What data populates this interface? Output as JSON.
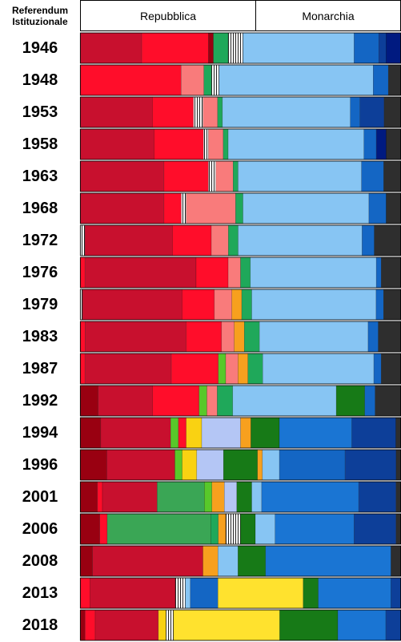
{
  "header": {
    "corner_line1": "Referendum",
    "corner_line2": "Istituzionale",
    "left_label": "Repubblica",
    "right_label": "Monarchia"
  },
  "chart_data": {
    "type": "bar",
    "orientation": "horizontal-stacked",
    "header_split_percent": 54.5,
    "colors": {
      "darkred": "#990011",
      "crimson": "#c8102e",
      "red": "#ff0d2a",
      "salmon": "#f97b7b",
      "green": "#1fa85a",
      "darkgreen": "#177a17",
      "medgreen": "#3aa655",
      "lime": "#58c82a",
      "lightblue": "#87c5f3",
      "periwinkle": "#b4c6f5",
      "blue": "#1466c4",
      "medblue": "#1a75d3",
      "navy": "#0d3f99",
      "darknavy": "#001a80",
      "dark": "#2e2e2e",
      "yellow": "#ffe22e",
      "gold": "#f9d212",
      "orange": "#f7a01e",
      "hatch": "stripes"
    },
    "rows": [
      {
        "year": "1946",
        "segments": [
          [
            "crimson",
            25
          ],
          [
            "red",
            27
          ],
          [
            "darkred",
            2
          ],
          [
            "green",
            6
          ],
          [
            "hatch",
            6
          ],
          [
            "lightblue",
            45
          ],
          [
            "blue",
            10
          ],
          [
            "navy",
            3
          ],
          [
            "darknavy",
            6
          ]
        ]
      },
      {
        "year": "1948",
        "segments": [
          [
            "red",
            40
          ],
          [
            "salmon",
            9
          ],
          [
            "green",
            3
          ],
          [
            "hatch",
            3
          ],
          [
            "lightblue",
            61
          ],
          [
            "blue",
            6
          ],
          [
            "dark",
            5
          ]
        ]
      },
      {
        "year": "1953",
        "segments": [
          [
            "crimson",
            30
          ],
          [
            "red",
            17
          ],
          [
            "hatch",
            4
          ],
          [
            "salmon",
            6
          ],
          [
            "green",
            2
          ],
          [
            "lightblue",
            53
          ],
          [
            "blue",
            4
          ],
          [
            "navy",
            10
          ],
          [
            "dark",
            7
          ]
        ]
      },
      {
        "year": "1958",
        "segments": [
          [
            "crimson",
            30
          ],
          [
            "red",
            20
          ],
          [
            "hatch",
            2
          ],
          [
            "salmon",
            6
          ],
          [
            "green",
            2
          ],
          [
            "lightblue",
            55
          ],
          [
            "blue",
            5
          ],
          [
            "darknavy",
            4
          ],
          [
            "dark",
            6
          ]
        ]
      },
      {
        "year": "1963",
        "segments": [
          [
            "crimson",
            34
          ],
          [
            "red",
            18
          ],
          [
            "hatch",
            3
          ],
          [
            "salmon",
            7
          ],
          [
            "green",
            2
          ],
          [
            "lightblue",
            50
          ],
          [
            "blue",
            9
          ],
          [
            "dark",
            7
          ]
        ]
      },
      {
        "year": "1968",
        "segments": [
          [
            "crimson",
            34
          ],
          [
            "red",
            7
          ],
          [
            "hatch",
            2
          ],
          [
            "salmon",
            20
          ],
          [
            "green",
            3
          ],
          [
            "lightblue",
            51
          ],
          [
            "blue",
            7
          ],
          [
            "dark",
            6
          ]
        ]
      },
      {
        "year": "1972",
        "segments": [
          [
            "hatch",
            2
          ],
          [
            "crimson",
            36
          ],
          [
            "red",
            16
          ],
          [
            "salmon",
            7
          ],
          [
            "green",
            4
          ],
          [
            "lightblue",
            51
          ],
          [
            "blue",
            5
          ],
          [
            "dark",
            11
          ]
        ]
      },
      {
        "year": "1976",
        "segments": [
          [
            "red",
            2
          ],
          [
            "crimson",
            45
          ],
          [
            "red",
            13
          ],
          [
            "salmon",
            5
          ],
          [
            "green",
            4
          ],
          [
            "lightblue",
            51
          ],
          [
            "blue",
            2
          ],
          [
            "dark",
            8
          ]
        ]
      },
      {
        "year": "1979",
        "segments": [
          [
            "hatch",
            1
          ],
          [
            "crimson",
            40
          ],
          [
            "red",
            13
          ],
          [
            "salmon",
            7
          ],
          [
            "orange",
            4
          ],
          [
            "green",
            4
          ],
          [
            "lightblue",
            50
          ],
          [
            "blue",
            3
          ],
          [
            "dark",
            7
          ]
        ]
      },
      {
        "year": "1983",
        "segments": [
          [
            "red",
            2
          ],
          [
            "crimson",
            40
          ],
          [
            "red",
            14
          ],
          [
            "salmon",
            5
          ],
          [
            "orange",
            4
          ],
          [
            "green",
            6
          ],
          [
            "lightblue",
            43
          ],
          [
            "blue",
            4
          ],
          [
            "dark",
            9
          ]
        ]
      },
      {
        "year": "1987",
        "segments": [
          [
            "red",
            2
          ],
          [
            "crimson",
            35
          ],
          [
            "red",
            19
          ],
          [
            "lime",
            3
          ],
          [
            "salmon",
            5
          ],
          [
            "orange",
            4
          ],
          [
            "green",
            6
          ],
          [
            "lightblue",
            45
          ],
          [
            "blue",
            3
          ],
          [
            "dark",
            8
          ]
        ]
      },
      {
        "year": "1992",
        "segments": [
          [
            "darkred",
            7
          ],
          [
            "crimson",
            21
          ],
          [
            "red",
            18
          ],
          [
            "lime",
            3
          ],
          [
            "salmon",
            4
          ],
          [
            "green",
            6
          ],
          [
            "lightblue",
            40
          ],
          [
            "darkgreen",
            11
          ],
          [
            "blue",
            4
          ],
          [
            "dark",
            10
          ]
        ]
      },
      {
        "year": "1994",
        "segments": [
          [
            "darkred",
            8
          ],
          [
            "crimson",
            27
          ],
          [
            "lime",
            3
          ],
          [
            "red",
            3
          ],
          [
            "gold",
            6
          ],
          [
            "periwinkle",
            15
          ],
          [
            "orange",
            4
          ],
          [
            "darkgreen",
            11
          ],
          [
            "medblue",
            28
          ],
          [
            "navy",
            17
          ],
          [
            "dark",
            2
          ]
        ]
      },
      {
        "year": "1996",
        "segments": [
          [
            "darkred",
            11
          ],
          [
            "crimson",
            28
          ],
          [
            "lime",
            3
          ],
          [
            "gold",
            6
          ],
          [
            "periwinkle",
            11
          ],
          [
            "darkgreen",
            14
          ],
          [
            "orange",
            2
          ],
          [
            "lightblue",
            7
          ],
          [
            "blue",
            27
          ],
          [
            "navy",
            21
          ],
          [
            "dark",
            2
          ]
        ]
      },
      {
        "year": "2001",
        "segments": [
          [
            "darkred",
            7
          ],
          [
            "red",
            2
          ],
          [
            "crimson",
            22
          ],
          [
            "medgreen",
            19
          ],
          [
            "lime",
            3
          ],
          [
            "orange",
            5
          ],
          [
            "periwinkle",
            5
          ],
          [
            "darkgreen",
            6
          ],
          [
            "lightblue",
            4
          ],
          [
            "medblue",
            39
          ],
          [
            "navy",
            15
          ],
          [
            "dark",
            2
          ]
        ]
      },
      {
        "year": "2006",
        "segments": [
          [
            "darkred",
            8
          ],
          [
            "red",
            3
          ],
          [
            "medgreen",
            42
          ],
          [
            "green",
            3
          ],
          [
            "orange",
            3
          ],
          [
            "hatch",
            6
          ],
          [
            "darkgreen",
            6
          ],
          [
            "lightblue",
            8
          ],
          [
            "medblue",
            32
          ],
          [
            "navy",
            17
          ],
          [
            "dark",
            2
          ]
        ]
      },
      {
        "year": "2008",
        "segments": [
          [
            "darkred",
            5
          ],
          [
            "crimson",
            44
          ],
          [
            "orange",
            6
          ],
          [
            "lightblue",
            8
          ],
          [
            "darkgreen",
            11
          ],
          [
            "medblue",
            50
          ],
          [
            "dark",
            4
          ]
        ]
      },
      {
        "year": "2013",
        "segments": [
          [
            "red",
            4
          ],
          [
            "crimson",
            34
          ],
          [
            "hatch",
            4
          ],
          [
            "lightblue",
            2
          ],
          [
            "blue",
            11
          ],
          [
            "yellow",
            34
          ],
          [
            "darkgreen",
            6
          ],
          [
            "medblue",
            29
          ],
          [
            "navy",
            4
          ]
        ]
      },
      {
        "year": "2018",
        "segments": [
          [
            "darkred",
            2
          ],
          [
            "red",
            4
          ],
          [
            "crimson",
            25
          ],
          [
            "gold",
            3
          ],
          [
            "hatch",
            3
          ],
          [
            "yellow",
            42
          ],
          [
            "darkgreen",
            23
          ],
          [
            "medblue",
            19
          ],
          [
            "navy",
            6
          ]
        ]
      }
    ]
  }
}
